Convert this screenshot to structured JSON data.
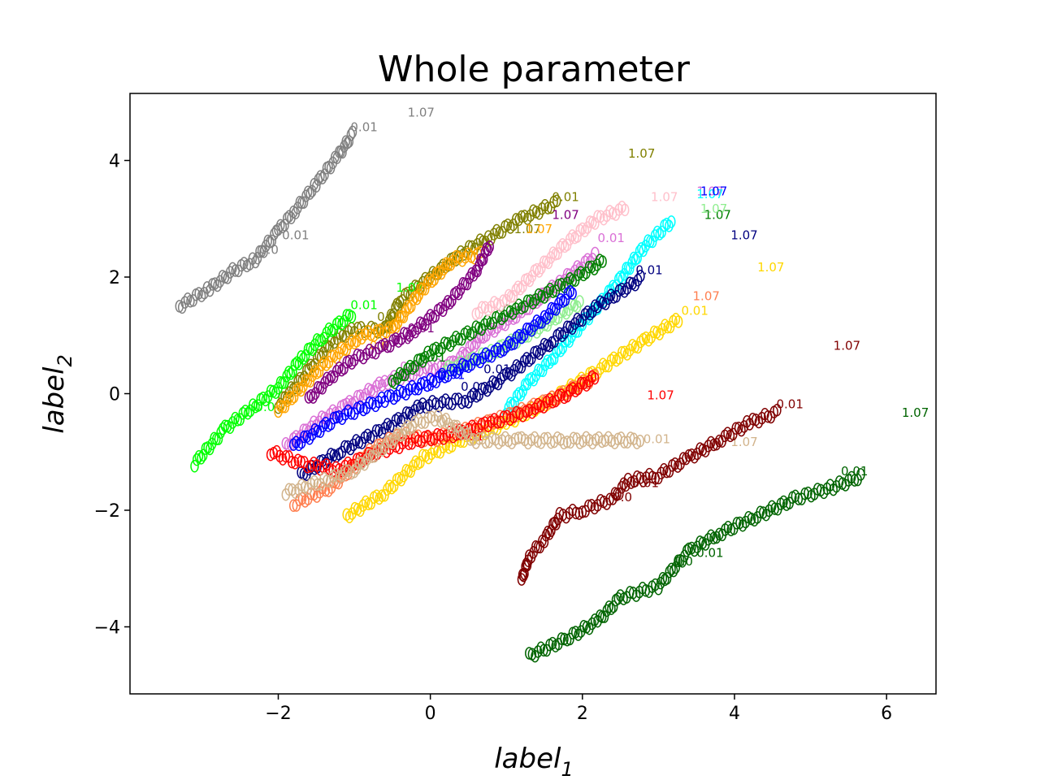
{
  "chart_data": {
    "type": "scatter",
    "title": "Whole parameter",
    "xlabel": {
      "base": "label",
      "sub": "1"
    },
    "ylabel": {
      "base": "label",
      "sub": "2"
    },
    "xlim": [
      -3.95,
      6.65
    ],
    "ylim": [
      -5.15,
      5.15
    ],
    "xticks": [
      -2,
      0,
      2,
      4,
      6
    ],
    "yticks": [
      -4,
      -2,
      0,
      2,
      4
    ],
    "xtick_labels": [
      "−2",
      "0",
      "2",
      "4",
      "6"
    ],
    "ytick_labels": [
      "−4",
      "−2",
      "0",
      "2",
      "4"
    ],
    "grid": false,
    "series": [
      {
        "color": "#808080",
        "points": [
          [
            -3.3,
            1.5
          ],
          [
            -2.9,
            1.8
          ],
          [
            -2.6,
            2.1
          ],
          [
            -2.3,
            2.3
          ],
          [
            -2.0,
            2.8
          ],
          [
            -1.8,
            3.1
          ],
          [
            -1.5,
            3.6
          ],
          [
            -1.2,
            4.1
          ],
          [
            -1.0,
            4.5
          ]
        ],
        "labels": [
          {
            "x": -2.25,
            "y": 2.4,
            "text": "0.0"
          },
          {
            "x": -1.95,
            "y": 2.65,
            "text": "0.01"
          },
          {
            "x": -1.05,
            "y": 4.5,
            "text": "0.01"
          }
        ],
        "end": {
          "x": -0.3,
          "y": 4.75,
          "text": "1.07"
        }
      },
      {
        "color": "#808000",
        "points": [
          [
            -2.0,
            -0.2
          ],
          [
            -1.6,
            0.4
          ],
          [
            -1.3,
            0.9
          ],
          [
            -1.0,
            1.1
          ],
          [
            -0.6,
            1.1
          ],
          [
            -0.4,
            1.6
          ],
          [
            0.0,
            2.0
          ],
          [
            0.4,
            2.4
          ],
          [
            0.8,
            2.7
          ],
          [
            1.2,
            3.0
          ],
          [
            1.7,
            3.3
          ]
        ],
        "labels": [
          {
            "x": -0.7,
            "y": 1.25,
            "text": "0.01"
          },
          {
            "x": 1.6,
            "y": 3.3,
            "text": "0.01"
          },
          {
            "x": 1.1,
            "y": 2.75,
            "text": "1.07"
          }
        ],
        "end": {
          "x": 2.6,
          "y": 4.05,
          "text": "1.07"
        }
      },
      {
        "color": "#00ff00",
        "points": [
          [
            -3.1,
            -1.2
          ],
          [
            -2.7,
            -0.6
          ],
          [
            -2.3,
            -0.2
          ],
          [
            -2.0,
            0.1
          ],
          [
            -1.7,
            0.6
          ],
          [
            -1.4,
            1.0
          ],
          [
            -1.0,
            1.4
          ]
        ],
        "labels": [
          {
            "x": -2.3,
            "y": -0.3,
            "text": "0.0"
          },
          {
            "x": -1.05,
            "y": 1.45,
            "text": "0.01"
          }
        ],
        "end": {
          "x": -0.45,
          "y": 1.75,
          "text": "1.07"
        }
      },
      {
        "color": "#ffa500",
        "points": [
          [
            -2.0,
            -0.3
          ],
          [
            -1.4,
            0.5
          ],
          [
            -0.9,
            1.0
          ],
          [
            -0.5,
            1.1
          ],
          [
            -0.1,
            1.8
          ],
          [
            0.3,
            2.3
          ],
          [
            0.7,
            2.4
          ]
        ],
        "labels": [
          {
            "x": -0.8,
            "y": 0.75,
            "text": "0.0"
          }
        ],
        "end": {
          "x": 1.25,
          "y": 2.75,
          "text": "1.07"
        }
      },
      {
        "color": "#800080",
        "points": [
          [
            -1.6,
            -0.1
          ],
          [
            -1.3,
            0.3
          ],
          [
            -1.0,
            0.6
          ],
          [
            -0.6,
            0.8
          ],
          [
            -0.2,
            1.1
          ],
          [
            0.2,
            1.5
          ],
          [
            0.6,
            2.1
          ],
          [
            0.8,
            2.6
          ]
        ],
        "labels": [
          {
            "x": -0.5,
            "y": 0.85,
            "text": "0.0"
          },
          {
            "x": -0.3,
            "y": 1.05,
            "text": "0.01"
          }
        ],
        "end": {
          "x": 1.6,
          "y": 3.0,
          "text": "1.07"
        }
      },
      {
        "color": "#da70d6",
        "points": [
          [
            -1.9,
            -0.9
          ],
          [
            -1.5,
            -0.5
          ],
          [
            -1.1,
            -0.2
          ],
          [
            -0.6,
            0.2
          ],
          [
            -0.1,
            0.4
          ],
          [
            0.3,
            0.5
          ],
          [
            0.7,
            1.0
          ],
          [
            1.2,
            1.4
          ],
          [
            1.7,
            1.9
          ],
          [
            2.2,
            2.4
          ]
        ],
        "labels": [
          {
            "x": -0.4,
            "y": 0.4,
            "text": "0.0"
          },
          {
            "x": 2.2,
            "y": 2.6,
            "text": "0.01"
          }
        ],
        "end": {
          "x": 3.5,
          "y": 3.4,
          "text": "1.07"
        }
      },
      {
        "color": "#008000",
        "points": [
          [
            -0.5,
            0.2
          ],
          [
            0.0,
            0.7
          ],
          [
            0.6,
            1.1
          ],
          [
            1.2,
            1.5
          ],
          [
            1.8,
            1.9
          ],
          [
            2.3,
            2.3
          ]
        ],
        "labels": [
          {
            "x": -0.15,
            "y": 0.55,
            "text": "0.01"
          }
        ],
        "end": {
          "x": 3.6,
          "y": 3.0,
          "text": "1.07"
        }
      },
      {
        "color": "#ffc0cb",
        "points": [
          [
            0.6,
            1.4
          ],
          [
            1.0,
            1.6
          ],
          [
            1.4,
            2.1
          ],
          [
            1.8,
            2.6
          ],
          [
            2.2,
            3.0
          ],
          [
            2.6,
            3.2
          ]
        ],
        "labels": [],
        "end": {
          "x": 2.9,
          "y": 3.3,
          "text": "1.07"
        }
      },
      {
        "color": "#00ffff",
        "points": [
          [
            1.0,
            -0.3
          ],
          [
            1.3,
            0.2
          ],
          [
            1.6,
            0.6
          ],
          [
            2.0,
            1.2
          ],
          [
            2.4,
            1.8
          ],
          [
            2.8,
            2.5
          ],
          [
            3.2,
            3.0
          ]
        ],
        "labels": [],
        "end": {
          "x": 3.5,
          "y": 3.35,
          "text": "1.07"
        }
      },
      {
        "color": "#90ee90",
        "points": [
          [
            0.2,
            0.4
          ],
          [
            0.8,
            0.7
          ],
          [
            1.4,
            1.1
          ],
          [
            2.0,
            1.6
          ]
        ],
        "labels": [],
        "end": {
          "x": 3.55,
          "y": 3.1,
          "text": "1.07"
        }
      },
      {
        "color": "#0000ff",
        "points": [
          [
            -1.8,
            -0.9
          ],
          [
            -1.2,
            -0.4
          ],
          [
            -0.6,
            -0.1
          ],
          [
            0.0,
            0.2
          ],
          [
            0.5,
            0.5
          ],
          [
            1.0,
            0.8
          ],
          [
            1.5,
            1.3
          ],
          [
            1.9,
            1.8
          ]
        ],
        "labels": [
          {
            "x": -0.2,
            "y": 0.05,
            "text": "0.0"
          },
          {
            "x": 0.1,
            "y": 0.25,
            "text": "0.01"
          }
        ],
        "end": {
          "x": 3.55,
          "y": 3.4,
          "text": "1.07"
        }
      },
      {
        "color": "#000080",
        "points": [
          [
            -1.7,
            -1.4
          ],
          [
            -1.2,
            -1.0
          ],
          [
            -0.6,
            -0.6
          ],
          [
            -0.1,
            -0.2
          ],
          [
            0.5,
            -0.1
          ],
          [
            1.0,
            0.3
          ],
          [
            1.6,
            0.9
          ],
          [
            2.2,
            1.5
          ],
          [
            2.8,
            2.0
          ]
        ],
        "labels": [
          {
            "x": 0.4,
            "y": 0.05,
            "text": "0.0"
          },
          {
            "x": 0.7,
            "y": 0.35,
            "text": "0.01"
          },
          {
            "x": 2.7,
            "y": 2.05,
            "text": "0.01"
          }
        ],
        "end": {
          "x": 3.95,
          "y": 2.65,
          "text": "1.07"
        }
      },
      {
        "color": "#ffd700",
        "points": [
          [
            -1.1,
            -2.1
          ],
          [
            -0.6,
            -1.7
          ],
          [
            -0.1,
            -1.1
          ],
          [
            0.4,
            -0.8
          ],
          [
            1.0,
            -0.5
          ],
          [
            1.6,
            -0.1
          ],
          [
            2.2,
            0.4
          ],
          [
            2.8,
            0.9
          ],
          [
            3.3,
            1.3
          ]
        ],
        "labels": [
          {
            "x": 3.3,
            "y": 1.35,
            "text": "0.01"
          }
        ],
        "end": {
          "x": 4.3,
          "y": 2.1,
          "text": "1.07"
        }
      },
      {
        "color": "#ff7f50",
        "points": [
          [
            -1.8,
            -1.9
          ],
          [
            -1.3,
            -1.6
          ],
          [
            -0.8,
            -1.0
          ],
          [
            -0.4,
            -0.7
          ],
          [
            0.0,
            -0.8
          ],
          [
            0.5,
            -0.6
          ],
          [
            1.0,
            -0.4
          ],
          [
            1.6,
            -0.1
          ],
          [
            2.2,
            0.3
          ]
        ],
        "labels": [],
        "end": {
          "x": 3.45,
          "y": 1.6,
          "text": "1.07"
        }
      },
      {
        "color": "#ff0000",
        "points": [
          [
            -2.1,
            -1.0
          ],
          [
            -1.7,
            -1.2
          ],
          [
            -1.2,
            -1.3
          ],
          [
            -0.7,
            -1.0
          ],
          [
            -0.2,
            -0.8
          ],
          [
            0.3,
            -0.7
          ],
          [
            0.8,
            -0.5
          ],
          [
            1.3,
            -0.3
          ],
          [
            1.8,
            0.0
          ],
          [
            2.2,
            0.3
          ]
        ],
        "labels": [
          {
            "x": 0.35,
            "y": -0.8,
            "text": "0.01"
          }
        ],
        "end": {
          "x": 2.85,
          "y": -0.1,
          "text": "1.07"
        }
      },
      {
        "color": "#d2b48c",
        "points": [
          [
            -1.9,
            -1.7
          ],
          [
            -1.4,
            -1.5
          ],
          [
            -1.0,
            -1.3
          ],
          [
            -0.2,
            -0.5
          ],
          [
            0.1,
            -0.4
          ],
          [
            0.6,
            -0.8
          ],
          [
            1.2,
            -0.8
          ],
          [
            1.8,
            -0.8
          ],
          [
            2.3,
            -0.8
          ],
          [
            2.8,
            -0.8
          ]
        ],
        "labels": [
          {
            "x": 2.8,
            "y": -0.85,
            "text": "0.01"
          }
        ],
        "end": {
          "x": 3.95,
          "y": -0.9,
          "text": "1.07"
        }
      },
      {
        "color": "#800000",
        "points": [
          [
            1.2,
            -3.2
          ],
          [
            1.3,
            -2.8
          ],
          [
            1.5,
            -2.5
          ],
          [
            1.7,
            -2.1
          ],
          [
            2.0,
            -2.0
          ],
          [
            2.4,
            -1.8
          ],
          [
            2.6,
            -1.5
          ],
          [
            3.0,
            -1.4
          ],
          [
            3.4,
            -1.1
          ],
          [
            3.8,
            -0.8
          ],
          [
            4.2,
            -0.5
          ],
          [
            4.6,
            -0.3
          ]
        ],
        "labels": [
          {
            "x": 2.4,
            "y": -1.85,
            "text": "0.0"
          },
          {
            "x": 2.65,
            "y": -1.6,
            "text": "0.01"
          },
          {
            "x": 4.55,
            "y": -0.25,
            "text": "0.01"
          }
        ],
        "end": {
          "x": 5.3,
          "y": 0.75,
          "text": "1.07"
        }
      },
      {
        "color": "#006400",
        "points": [
          [
            1.3,
            -4.5
          ],
          [
            1.8,
            -4.2
          ],
          [
            2.2,
            -3.9
          ],
          [
            2.5,
            -3.5
          ],
          [
            3.0,
            -3.3
          ],
          [
            3.4,
            -2.7
          ],
          [
            3.8,
            -2.4
          ],
          [
            4.3,
            -2.1
          ],
          [
            4.8,
            -1.8
          ],
          [
            5.3,
            -1.6
          ],
          [
            5.7,
            -1.4
          ]
        ],
        "labels": [
          {
            "x": 3.2,
            "y": -2.95,
            "text": "0.0"
          },
          {
            "x": 3.5,
            "y": -2.8,
            "text": "0.01"
          },
          {
            "x": 5.4,
            "y": -1.4,
            "text": "0.01"
          }
        ],
        "end": {
          "x": 6.2,
          "y": -0.4,
          "text": "1.07"
        }
      }
    ]
  }
}
